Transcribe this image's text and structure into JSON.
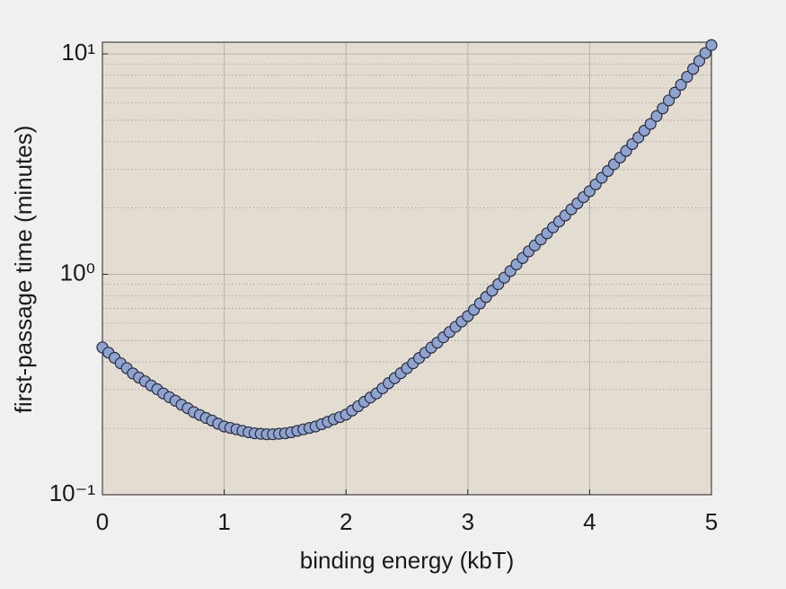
{
  "chart_data": {
    "type": "scatter",
    "xlabel": "binding energy (kbT)",
    "ylabel": "first-passage time (minutes)",
    "x": [
      0,
      0.05,
      0.1,
      0.15,
      0.2,
      0.25,
      0.3,
      0.35,
      0.4,
      0.45,
      0.5,
      0.55,
      0.6,
      0.65,
      0.7,
      0.75,
      0.8,
      0.85,
      0.9,
      0.95,
      1,
      1.05,
      1.1,
      1.15,
      1.2,
      1.25,
      1.3,
      1.35,
      1.4,
      1.45,
      1.5,
      1.55,
      1.6,
      1.65,
      1.7,
      1.75,
      1.8,
      1.85,
      1.9,
      1.95,
      2,
      2.05,
      2.1,
      2.15,
      2.2,
      2.25,
      2.3,
      2.35,
      2.4,
      2.45,
      2.5,
      2.55,
      2.6,
      2.65,
      2.7,
      2.75,
      2.8,
      2.85,
      2.9,
      2.95,
      3,
      3.05,
      3.1,
      3.15,
      3.2,
      3.25,
      3.3,
      3.35,
      3.4,
      3.45,
      3.5,
      3.55,
      3.6,
      3.65,
      3.7,
      3.75,
      3.8,
      3.85,
      3.9,
      3.95,
      4,
      4.05,
      4.1,
      4.15,
      4.2,
      4.25,
      4.3,
      4.35,
      4.4,
      4.45,
      4.5,
      4.55,
      4.6,
      4.65,
      4.7,
      4.75,
      4.8,
      4.85,
      4.9,
      4.95,
      5
    ],
    "values": [
      0.466,
      0.441,
      0.418,
      0.395,
      0.375,
      0.355,
      0.34,
      0.327,
      0.313,
      0.301,
      0.288,
      0.277,
      0.267,
      0.256,
      0.247,
      0.237,
      0.23,
      0.223,
      0.217,
      0.21,
      0.204,
      0.201,
      0.198,
      0.195,
      0.192,
      0.19,
      0.189,
      0.188,
      0.188,
      0.189,
      0.19,
      0.192,
      0.195,
      0.198,
      0.201,
      0.204,
      0.209,
      0.214,
      0.22,
      0.225,
      0.231,
      0.241,
      0.252,
      0.264,
      0.276,
      0.288,
      0.304,
      0.321,
      0.338,
      0.356,
      0.375,
      0.395,
      0.417,
      0.441,
      0.465,
      0.49,
      0.518,
      0.547,
      0.578,
      0.611,
      0.646,
      0.69,
      0.738,
      0.789,
      0.843,
      0.902,
      0.966,
      1.035,
      1.109,
      1.186,
      1.271,
      1.352,
      1.439,
      1.535,
      1.633,
      1.738,
      1.849,
      1.972,
      2.099,
      2.239,
      2.382,
      2.559,
      2.742,
      2.944,
      3.155,
      3.388,
      3.631,
      3.899,
      4.178,
      4.487,
      4.808,
      5.224,
      5.662,
      6.152,
      6.668,
      7.244,
      7.87,
      8.551,
      9.29,
      10.09,
      10.96
    ],
    "color": "#8fa3d0",
    "edge_color": "#2b2b3b",
    "xlim": [
      0,
      5
    ],
    "xticks": [
      0,
      1,
      2,
      3,
      4,
      5
    ],
    "ylim": [
      0.1,
      11.3
    ],
    "yticks": [
      {
        "value": 0.1,
        "label": "10⁻¹"
      },
      {
        "value": 1,
        "label": "10⁰"
      },
      {
        "value": 10,
        "label": "10¹"
      }
    ],
    "log_y": true,
    "grid": true,
    "minor_grid": true,
    "background": "#e3ddd1"
  }
}
